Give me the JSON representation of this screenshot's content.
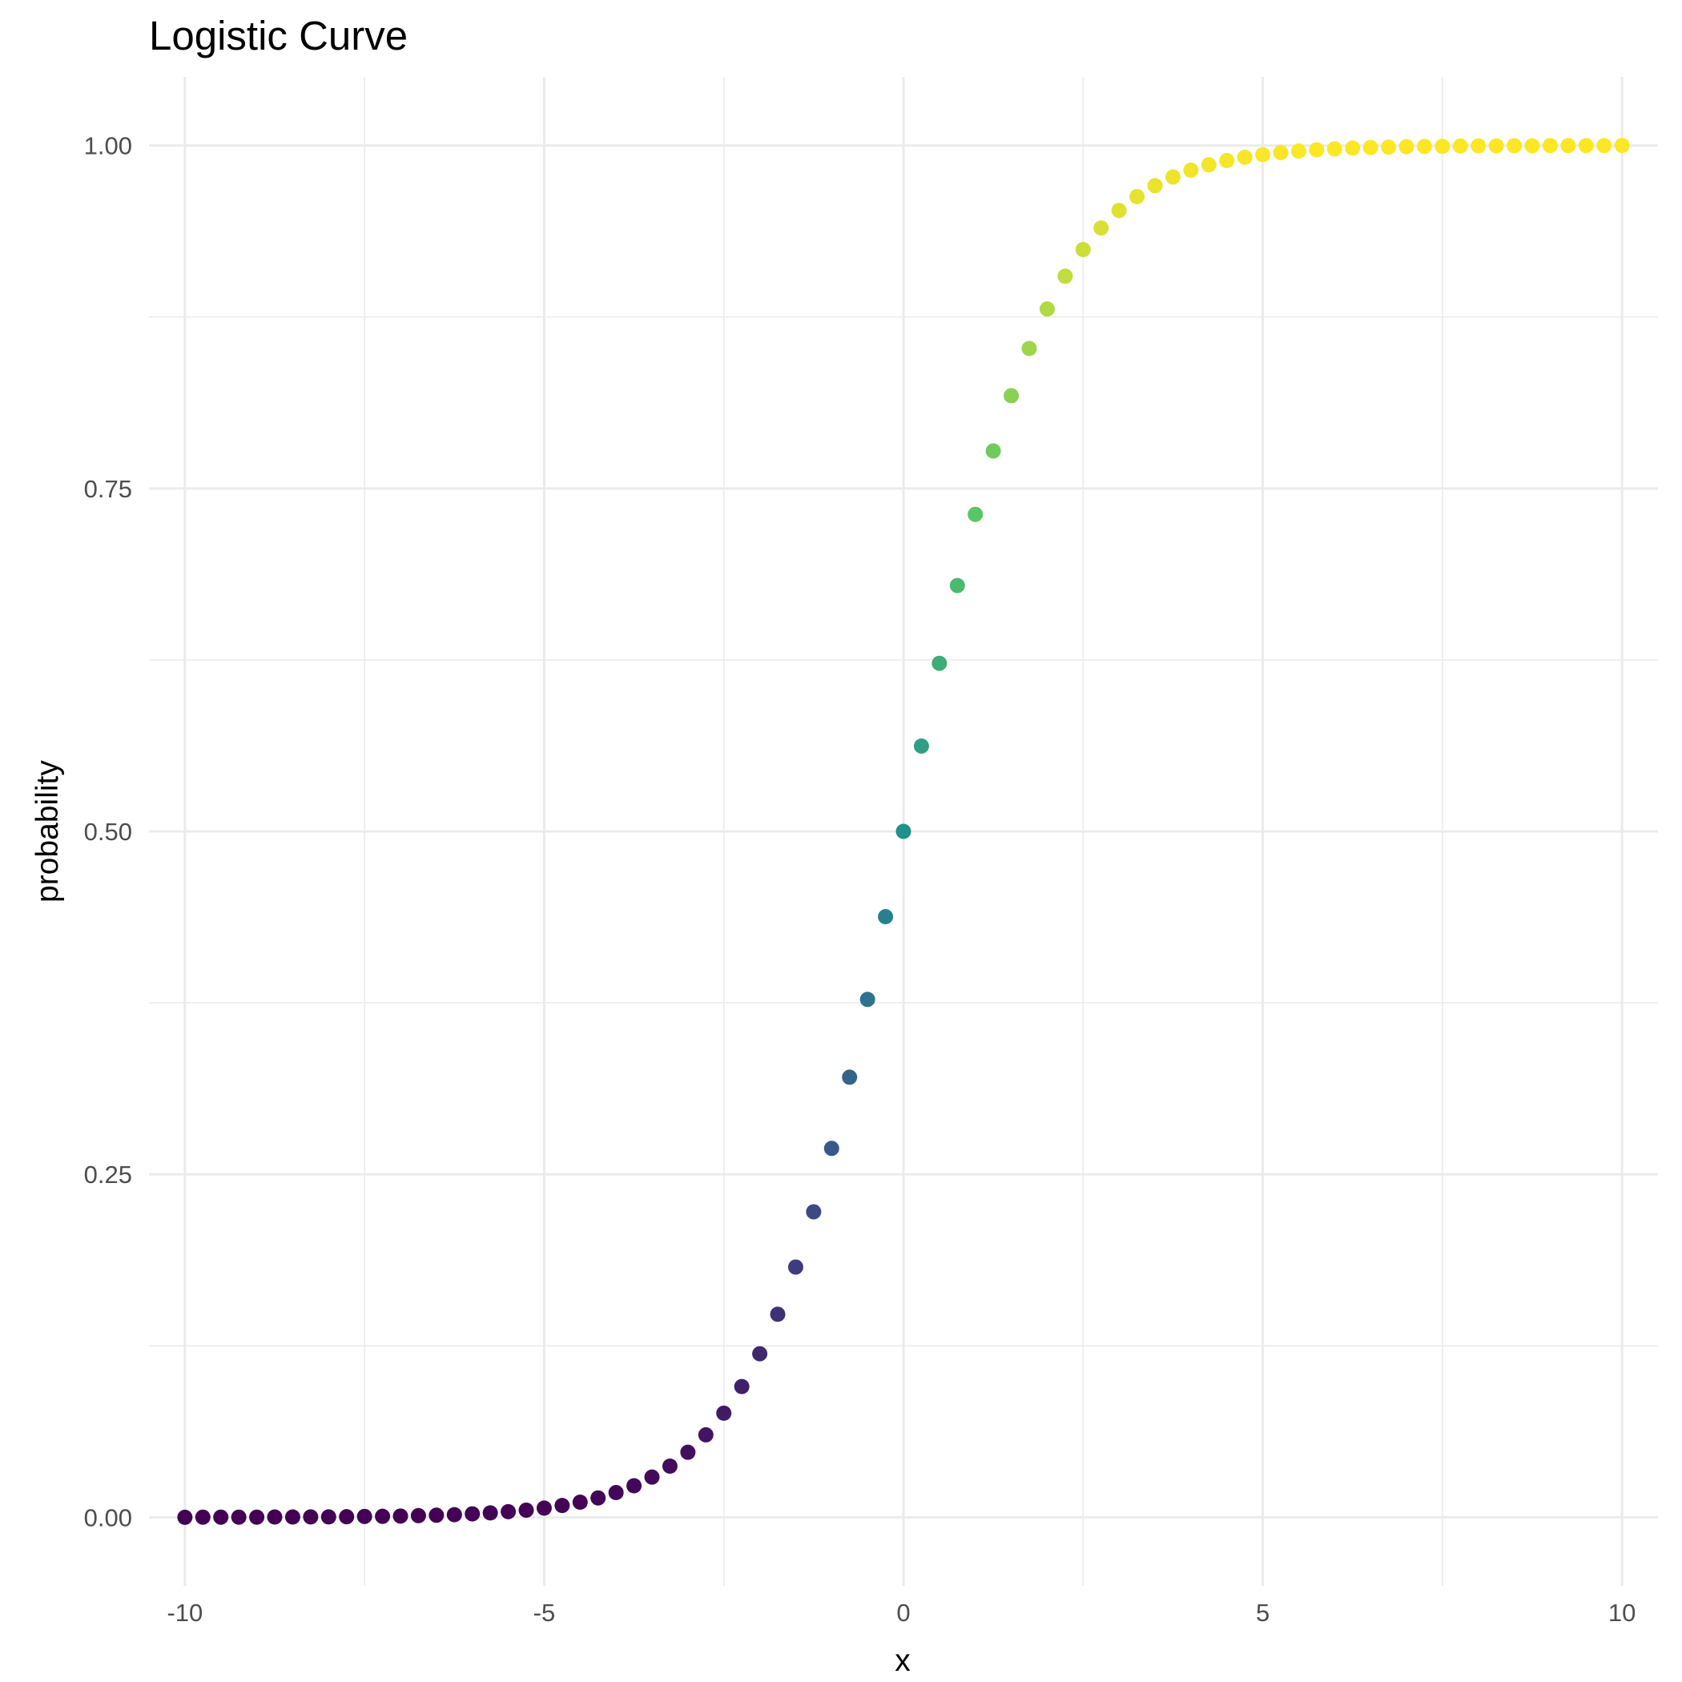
{
  "chart_data": {
    "type": "scatter",
    "title": "Logistic Curve",
    "xlabel": "x",
    "ylabel": "probability",
    "xlim": [
      -10.5,
      10.5
    ],
    "ylim": [
      -0.05,
      1.05
    ],
    "x_ticks": [
      -10,
      -5,
      0,
      5,
      10
    ],
    "x_tick_labels": [
      "-10",
      "-5",
      "0",
      "5",
      "10"
    ],
    "x_minor_ticks": [
      -7.5,
      -2.5,
      2.5,
      7.5
    ],
    "y_ticks": [
      0,
      0.25,
      0.5,
      0.75,
      1
    ],
    "y_tick_labels": [
      "0.00",
      "0.25",
      "0.50",
      "0.75",
      "1.00"
    ],
    "y_minor_ticks": [
      0.125,
      0.375,
      0.625,
      0.875
    ],
    "grid": true,
    "legend": "none",
    "color_scale": "viridis",
    "colors": [
      "#440154",
      "#3b528b",
      "#21908c",
      "#5dc963",
      "#fde725"
    ],
    "series": [
      {
        "x": [
          -10,
          -9.75,
          -9.5,
          -9.25,
          -9,
          -8.75,
          -8.5,
          -8.25,
          -8,
          -7.75,
          -7.5,
          -7.25,
          -7,
          -6.75,
          -6.5,
          -6.25,
          -6,
          -5.75,
          -5.5,
          -5.25,
          -5,
          -4.75,
          -4.5,
          -4.25,
          -4,
          -3.75,
          -3.5,
          -3.25,
          -3,
          -2.75,
          -2.5,
          -2.25,
          -2,
          -1.75,
          -1.5,
          -1.25,
          -1,
          -0.75,
          -0.5,
          -0.25,
          0,
          0.25,
          0.5,
          0.75,
          1,
          1.25,
          1.5,
          1.75,
          2,
          2.25,
          2.5,
          2.75,
          3,
          3.25,
          3.5,
          3.75,
          4,
          4.25,
          4.5,
          4.75,
          5,
          5.25,
          5.5,
          5.75,
          6,
          6.25,
          6.5,
          6.75,
          7,
          7.25,
          7.5,
          7.75,
          8,
          8.25,
          8.5,
          8.75,
          9,
          9.25,
          9.5,
          9.75,
          10
        ],
        "y": [
          0.0,
          0.0001,
          0.0001,
          0.0001,
          0.0001,
          0.0002,
          0.0002,
          0.0003,
          0.0003,
          0.0004,
          0.0006,
          0.0007,
          0.0009,
          0.0012,
          0.0015,
          0.0019,
          0.0025,
          0.0032,
          0.0041,
          0.0052,
          0.0067,
          0.0086,
          0.011,
          0.0141,
          0.018,
          0.023,
          0.0293,
          0.0373,
          0.0474,
          0.0601,
          0.0759,
          0.0953,
          0.1192,
          0.148,
          0.1824,
          0.2227,
          0.2689,
          0.3208,
          0.3775,
          0.4378,
          0.5,
          0.5622,
          0.6225,
          0.6792,
          0.7311,
          0.7773,
          0.8176,
          0.852,
          0.8808,
          0.9047,
          0.9241,
          0.9399,
          0.9526,
          0.9627,
          0.9707,
          0.977,
          0.982,
          0.9859,
          0.989,
          0.9914,
          0.9933,
          0.9948,
          0.9959,
          0.9968,
          0.9975,
          0.9981,
          0.9985,
          0.9988,
          0.9991,
          0.9993,
          0.9994,
          0.9996,
          0.9997,
          0.9997,
          0.9998,
          0.9998,
          0.9999,
          0.9999,
          0.9999,
          0.9999,
          1.0
        ]
      }
    ]
  }
}
